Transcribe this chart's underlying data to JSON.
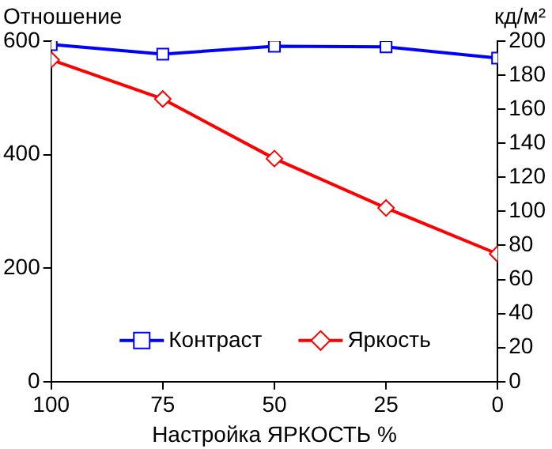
{
  "chart_data": {
    "type": "line",
    "xlabel": "Настройка ЯРКОСТЬ %",
    "ylabel": "Отношение",
    "y2label": "кд/м²",
    "x": [
      100,
      75,
      50,
      25,
      0
    ],
    "series": [
      {
        "name": "Контраст",
        "color": "#0000ff",
        "marker": "square",
        "values": [
          594,
          577,
          591,
          590,
          570
        ]
      },
      {
        "name": "Яркость",
        "color": "#ff0000",
        "marker": "diamond",
        "axis": "y2",
        "values": [
          189,
          166,
          131,
          102,
          75
        ]
      }
    ],
    "xlim": [
      100,
      0
    ],
    "xticks": [
      100,
      75,
      50,
      25,
      0
    ],
    "ylim": [
      0,
      600
    ],
    "yticks": [
      0,
      200,
      400,
      600
    ],
    "y2lim": [
      0,
      200
    ],
    "y2ticks": [
      0,
      20,
      40,
      60,
      80,
      100,
      120,
      140,
      160,
      180,
      200
    ],
    "grid": false,
    "legend": "bottom",
    "line_style": "solid"
  }
}
